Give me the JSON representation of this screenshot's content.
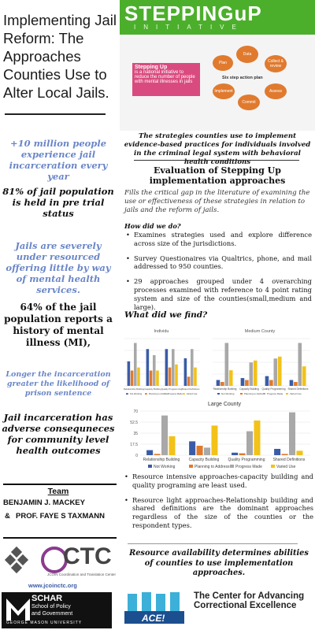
{
  "left": {
    "title": "Implementing Jail Reform: The Approaches Counties Use to Alter Local Jails.",
    "title_rule": "____________",
    "stats": [
      {
        "text": "+10 million people experience jail incarceration every year",
        "color": "#6a86c8"
      },
      {
        "text": "81% of jail population is held in pre trial status",
        "color": "#111111"
      },
      {
        "text": "Jails are severely under resourced offering little by way of mental health services.",
        "color": "#6a86c8"
      },
      {
        "text": "64% of the jail population reports a history of mental illness (MI),",
        "color": "#111111"
      },
      {
        "text": "Longer the incarceration greater the likelihood of prison sentence",
        "color": "#6a86c8"
      },
      {
        "text": "Jail incarceration has adverse consequneces for community level health outcomes",
        "color": "#111111"
      }
    ],
    "team_heading": "Team",
    "team_members": [
      "BENJAMIN J. MACKEY",
      "&",
      "PROF. FAYE S TAXMANN"
    ],
    "ctc_name": "CTC",
    "ctc_sub": "JCOIN Coordination and Translation Center",
    "website": "www.jcoinctc.org",
    "schar_name": "SCHAR",
    "schar_sub1": "School of Policy",
    "schar_sub2": "and Government",
    "schar_sub3": "GEORGE MASON UNIVERSITY"
  },
  "header": {
    "brand": "STEPPINGuP",
    "brand_sub": "INITIATIVE",
    "box_title": "Stepping Up",
    "box_text": "is a national initiative to reduce the number of people with mental illnesses in jails",
    "six_step": "Six step action plan",
    "steps": [
      "Collect & review",
      "Data",
      "Plan",
      "Implement",
      "Assess",
      "Commit"
    ]
  },
  "main": {
    "intro": "The strategies counties use to implement evidence-based practices for individuals involved in the criminal legal system with behavioral health conditions",
    "eval_title": "Evaluation of Stepping Up implementation approaches",
    "eval_desc": "Fills the critical gap in the literature of examining the use or effectiveness of these strategies in relation to jails and the reform of jails.",
    "how_head": "How did we do?",
    "methods": [
      "Examines strategies used and explore difference across size of the jurisdictions.",
      "Survey Questionaires via Qualtrics, phone, and mail addressed to 950 counties.",
      "29 approaches grouped under 4 overarching processes examined with reference to 4 point rating system and size of the counties(small,medium and large)."
    ],
    "found_head": "What did we find?",
    "results": [
      "Resource intensive approaches-capacity building and quality programing are least used.",
      "Resource light approaches-Relationship building and shared definitions are the dominant approaches regardless of the size of the counties or the respondent types."
    ],
    "conclusion": "Resource availability determines abilities of counties to use implementation approaches.",
    "ace_name": "ACE!",
    "ace_text": "The Center for Advancing Correctional Excellence"
  },
  "chart_data": [
    {
      "type": "bar",
      "title": "Individu",
      "categories": [
        "Relationship Building",
        "Capacity Building",
        "Quality Programming",
        "Shared Definitions"
      ],
      "series": [
        {
          "name": "Not Working",
          "color": "#3a5ca8",
          "values": [
            8,
            12,
            12,
            9
          ]
        },
        {
          "name": "Planning to Address",
          "color": "#e07a2e",
          "values": [
            5,
            5,
            6,
            3
          ]
        },
        {
          "name": "Progress Made",
          "color": "#a8a8a8",
          "values": [
            14,
            10,
            12,
            12
          ]
        },
        {
          "name": "Varied Use",
          "color": "#f2c218",
          "values": [
            6,
            5,
            7,
            6
          ]
        }
      ]
    },
    {
      "type": "bar",
      "title": "Medium County",
      "categories": [
        "Relationship Building",
        "Capacity Building",
        "Quality Programming",
        "Shared Definitions"
      ],
      "series": [
        {
          "name": "Not Working",
          "color": "#3a5ca8",
          "values": [
            3,
            4,
            5,
            3
          ]
        },
        {
          "name": "Planning to Address",
          "color": "#e07a2e",
          "values": [
            2,
            3,
            3,
            2
          ]
        },
        {
          "name": "Progress Made",
          "color": "#a8a8a8",
          "values": [
            22,
            12,
            14,
            22
          ]
        },
        {
          "name": "Varied Use",
          "color": "#f2c218",
          "values": [
            8,
            13,
            15,
            10
          ]
        }
      ]
    },
    {
      "type": "bar",
      "title": "Large County",
      "categories": [
        "Relationship Building",
        "Capacity Building",
        "Quality Programming",
        "Shared Definitions"
      ],
      "series": [
        {
          "name": "Not Working",
          "color": "#3a5ca8",
          "values": [
            8,
            22,
            4,
            10
          ]
        },
        {
          "name": "Planning to Address",
          "color": "#e07a2e",
          "values": [
            2,
            15,
            3,
            2
          ]
        },
        {
          "name": "Progress Made",
          "color": "#a8a8a8",
          "values": [
            63,
            12,
            38,
            68
          ]
        },
        {
          "name": "Varied Use",
          "color": "#f2c218",
          "values": [
            30,
            47,
            55,
            7
          ]
        }
      ],
      "ylim": [
        0,
        70
      ],
      "yticks": [
        "0",
        "17.5",
        "35",
        "52.5",
        "70"
      ]
    }
  ]
}
